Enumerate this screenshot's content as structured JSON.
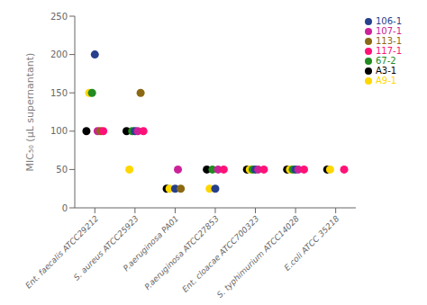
{
  "chart_data": {
    "type": "scatter",
    "categories": [
      "Ent. faecalis ATCC29212",
      "S. aureus ATCC25923",
      "P.aeruginosa PA01",
      "P.aeruginosa ATCC27853",
      "Ent. cloacae ATCC700323",
      "S. typhimurium ATCC14028",
      "E.coli ATCC 35218"
    ],
    "series": [
      {
        "name": "A3-1",
        "color": "#000000",
        "values": [
          100,
          100,
          25,
          50,
          50,
          50,
          50
        ]
      },
      {
        "name": "A9-1",
        "color": "#FFD700",
        "values": [
          150,
          50,
          25,
          25,
          50,
          50,
          50
        ]
      },
      {
        "name": "67-2",
        "color": "#228B22",
        "values": [
          150,
          100,
          null,
          50,
          50,
          50,
          null
        ]
      },
      {
        "name": "106-1",
        "color": "#27408B",
        "values": [
          200,
          100,
          25,
          25,
          50,
          50,
          null
        ]
      },
      {
        "name": "107-1",
        "color": "#CC2299",
        "values": [
          100,
          100,
          50,
          50,
          50,
          50,
          null
        ]
      },
      {
        "name": "113-1",
        "color": "#8B6914",
        "values": [
          100,
          150,
          25,
          null,
          null,
          null,
          null
        ]
      },
      {
        "name": "117-1",
        "color": "#FF1177",
        "values": [
          100,
          100,
          null,
          50,
          50,
          50,
          50
        ]
      }
    ],
    "ylabel": "MIC₅₀  (μL supernantant)",
    "ylim": [
      0,
      250
    ],
    "yticks": [
      0,
      50,
      100,
      150,
      200,
      250
    ],
    "grid": false,
    "legend": "right"
  }
}
